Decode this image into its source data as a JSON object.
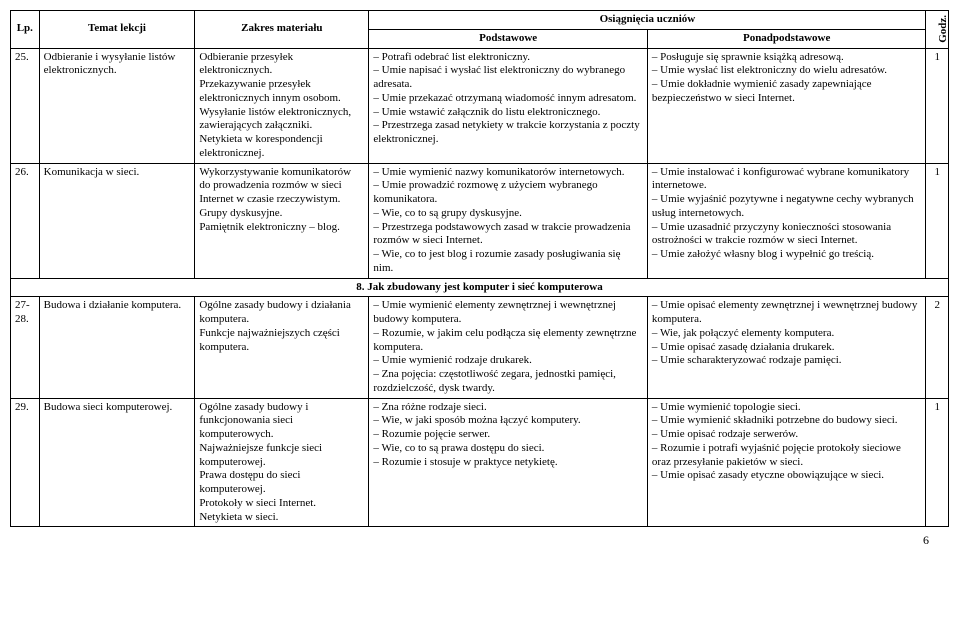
{
  "head": {
    "lp": "Lp.",
    "temat": "Temat lekcji",
    "zakres": "Zakres materiału",
    "osiag": "Osiągnięcia uczniów",
    "podst": "Podstawowe",
    "ponad": "Ponadpodstawowe",
    "godz": "Godz."
  },
  "r25": {
    "lp": "25.",
    "temat": "Odbieranie i wysyłanie listów elektronicznych.",
    "zakres": "Odbieranie przesyłek elektronicznych.\nPrzekazywanie przesyłek elektronicznych innym osobom.\nWysyłanie listów elektronicznych, zawierających załączniki.\nNetykieta w korespondencji elektronicznej.",
    "podst": "– Potrafi odebrać list elektroniczny.\n– Umie napisać i wysłać list elektroniczny do wybranego adresata.\n– Umie przekazać otrzymaną wiadomość innym adresatom.\n– Umie wstawić załącznik do listu elektronicznego.\n– Przestrzega zasad netykiety w trakcie korzystania z poczty elektronicznej.",
    "ponad": "– Posługuje się sprawnie książką adresową.\n– Umie wysłać list elektroniczny do wielu adresatów.\n– Umie dokładnie wymienić zasady zapewniające bezpieczeństwo w sieci Internet.",
    "godz": "1"
  },
  "r26": {
    "lp": "26.",
    "temat": "Komunikacja w sieci.",
    "zakres": "Wykorzystywanie komunikatorów do prowadzenia rozmów w sieci Internet w czasie rzeczywistym.\nGrupy dyskusyjne.\nPamiętnik elektroniczny – blog.",
    "podst": "– Umie wymienić nazwy komunikatorów internetowych.\n– Umie prowadzić rozmowę z użyciem wybranego komunikatora.\n– Wie, co to są grupy dyskusyjne.\n– Przestrzega podstawowych zasad w trakcie prowadzenia rozmów w sieci Internet.\n– Wie, co to jest blog i rozumie zasady posługiwania się nim.",
    "ponad": "– Umie instalować i konfigurować wybrane komunikatory internetowe.\n– Umie wyjaśnić pozytywne i negatywne cechy wybranych usług internetowych.\n– Umie uzasadnić przyczyny konieczności stosowania ostrożności w trakcie rozmów w sieci Internet.\n– Umie założyć własny blog i wypełnić go treścią.",
    "godz": "1"
  },
  "section8": "8. Jak zbudowany jest komputer i sieć komputerowa",
  "r2728": {
    "lp": "27-28.",
    "temat": "Budowa i działanie komputera.",
    "zakres": "Ogólne zasady budowy i działania komputera.\nFunkcje najważniejszych części komputera.",
    "podst": "– Umie wymienić elementy zewnętrznej i wewnętrznej budowy komputera.\n– Rozumie, w jakim celu podłącza się elementy zewnętrzne komputera.\n– Umie wymienić rodzaje drukarek.\n– Zna pojęcia: częstotliwość zegara, jednostki pamięci, rozdzielczość, dysk twardy.",
    "ponad": "– Umie opisać elementy zewnętrznej i wewnętrznej budowy komputera.\n– Wie, jak połączyć elementy komputera.\n– Umie opisać zasadę działania drukarek.\n– Umie scharakteryzować rodzaje pamięci.",
    "godz": "2"
  },
  "r29": {
    "lp": "29.",
    "temat": "Budowa sieci komputerowej.",
    "zakres": "Ogólne zasady budowy i funkcjonowania sieci komputerowych.\nNajważniejsze funkcje sieci komputerowej.\nPrawa dostępu do sieci komputerowej.\nProtokoły w sieci Internet.\nNetykieta w sieci.",
    "podst": "– Zna różne rodzaje sieci.\n– Wie, w jaki sposób można łączyć komputery.\n– Rozumie pojęcie serwer.\n– Wie, co to są  prawa dostępu do sieci.\n– Rozumie i stosuje w praktyce netykietę.",
    "ponad": "– Umie wymienić topologie sieci.\n– Umie wymienić składniki potrzebne do budowy sieci.\n– Umie opisać rodzaje serwerów.\n– Rozumie i potrafi wyjaśnić pojęcie protokoły sieciowe oraz przesyłanie pakietów w sieci.\n– Umie opisać zasady etyczne obowiązujące w sieci.",
    "godz": "1"
  },
  "pageNum": "6"
}
